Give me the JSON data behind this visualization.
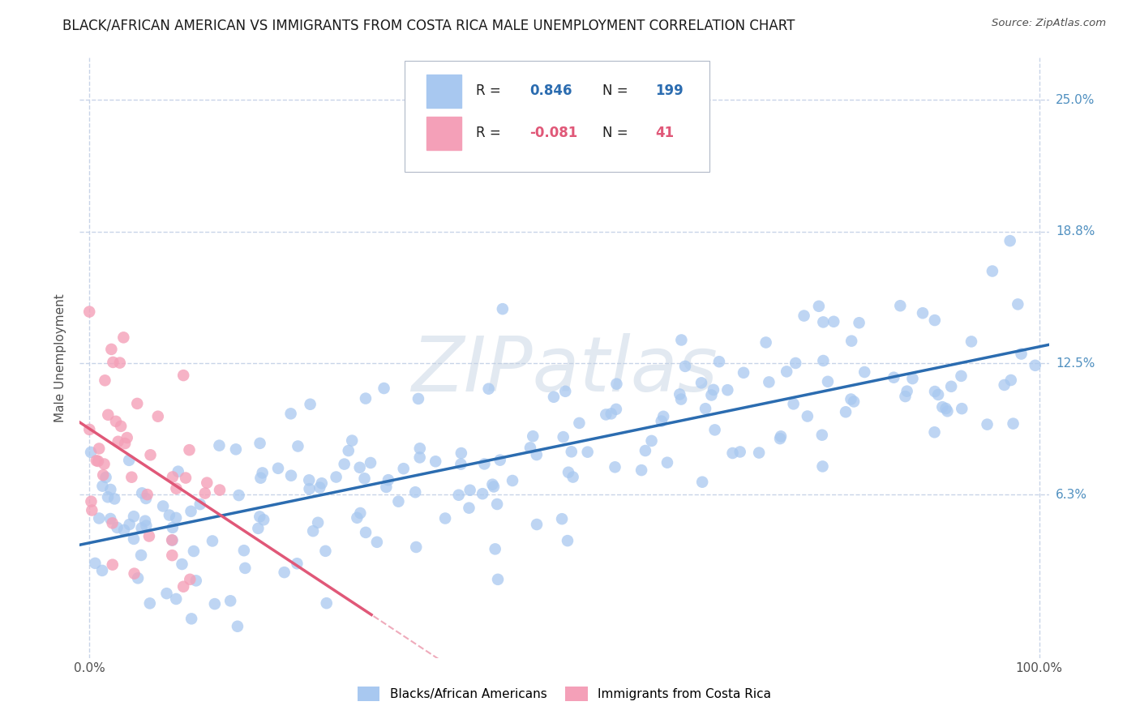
{
  "title": "BLACK/AFRICAN AMERICAN VS IMMIGRANTS FROM COSTA RICA MALE UNEMPLOYMENT CORRELATION CHART",
  "source": "Source: ZipAtlas.com",
  "ylabel": "Male Unemployment",
  "watermark": "ZIPatlas",
  "series": [
    {
      "label": "Blacks/African Americans",
      "R": 0.846,
      "N": 199,
      "color": "#a8c8f0",
      "line_color": "#2b6cb0",
      "seed": 42,
      "x_mean": 50,
      "x_std": 28,
      "y_intercept": 4.0,
      "slope": 0.09,
      "residual_std": 2.2
    },
    {
      "label": "Immigrants from Costa Rica",
      "R": -0.081,
      "N": 41,
      "color": "#f4a0b8",
      "line_color": "#e05878",
      "seed": 7,
      "x_mean": 5,
      "x_std": 6,
      "y_intercept": 8.2,
      "slope": -0.06,
      "residual_std": 3.0
    }
  ],
  "xlim": [
    -1,
    101
  ],
  "ylim": [
    -1.5,
    27
  ],
  "yticks": [
    6.25,
    12.5,
    18.75,
    25.0
  ],
  "ytick_labels": [
    "6.3%",
    "12.5%",
    "18.8%",
    "25.0%"
  ],
  "xticks": [
    0,
    100
  ],
  "xtick_labels": [
    "0.0%",
    "100.0%"
  ],
  "background_color": "#ffffff",
  "grid_color": "#c8d4e8",
  "title_fontsize": 12,
  "axis_label_fontsize": 11,
  "tick_fontsize": 11
}
